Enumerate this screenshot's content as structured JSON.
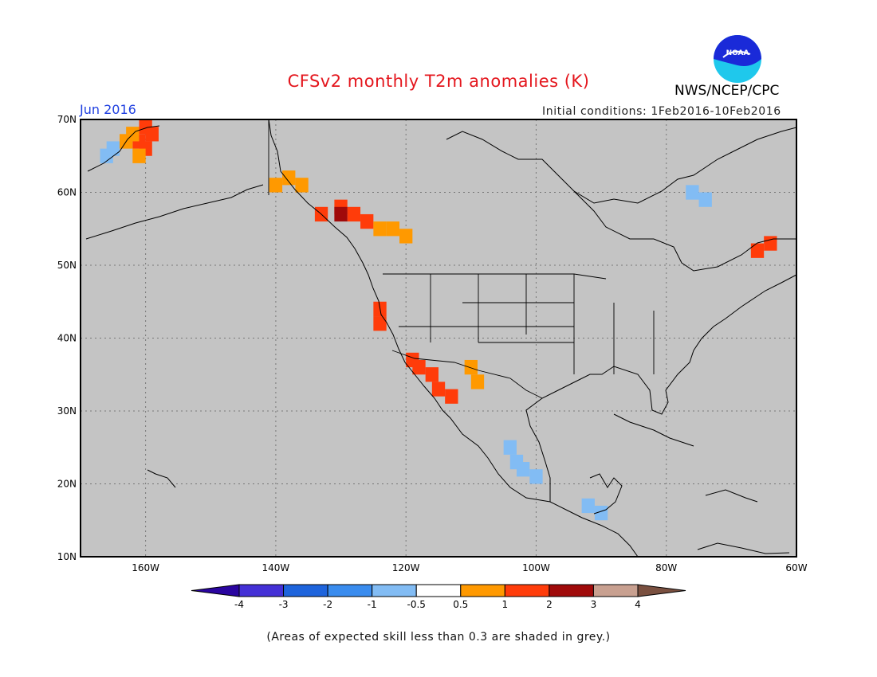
{
  "title": "CFSv2 monthly T2m anomalies (K)",
  "org": "NWS/NCEP/CPC",
  "logo_text": "NOAA",
  "valid_month": "Jun 2016",
  "initial_conditions": "Initial conditions: 1Feb2016-10Feb2016",
  "footnote": "(Areas of expected skill less than 0.3 are shaded in grey.)",
  "map": {
    "lon_range": [
      -170,
      -60
    ],
    "lat_range": [
      10,
      70
    ],
    "lon_ticks": [
      "160W",
      "140W",
      "120W",
      "100W",
      "80W",
      "60W"
    ],
    "lat_ticks": [
      "70N",
      "60N",
      "50N",
      "40N",
      "30N",
      "20N",
      "10N"
    ],
    "background_color": "#c4c4c4",
    "grid": "dotted"
  },
  "colorbar": {
    "ticks": [
      "-4",
      "-3",
      "-2",
      "-1",
      "-0.5",
      "0.5",
      "1",
      "2",
      "3",
      "4"
    ],
    "colors": [
      "#2a05a0",
      "#4430d6",
      "#1e64dc",
      "#3a8cee",
      "#82bcf4",
      "#ffffff",
      "#ff9900",
      "#ff3c0a",
      "#a00a0a",
      "#c8a090",
      "#7a5040"
    ]
  },
  "anomaly_regions": [
    {
      "name": "alaska-northwest",
      "color": "#ff3c0a",
      "cells": [
        [
          -160,
          69
        ],
        [
          -159,
          68
        ],
        [
          -161,
          67
        ],
        [
          -160,
          66
        ]
      ]
    },
    {
      "name": "alaska-northwest-warm",
      "color": "#ff9900",
      "cells": [
        [
          -162,
          68
        ],
        [
          -163,
          67
        ],
        [
          -161,
          65
        ]
      ]
    },
    {
      "name": "bering-coast-cold",
      "color": "#82bcf4",
      "cells": [
        [
          -166,
          65
        ],
        [
          -165,
          66
        ]
      ]
    },
    {
      "name": "yukon-warm",
      "color": "#ff9900",
      "cells": [
        [
          -138,
          62
        ],
        [
          -136,
          61
        ],
        [
          -140,
          61
        ]
      ]
    },
    {
      "name": "british-columbia-hot",
      "color": "#ff3c0a",
      "cells": [
        [
          -133,
          57
        ],
        [
          -130,
          58
        ],
        [
          -128,
          57
        ],
        [
          -126,
          56
        ]
      ]
    },
    {
      "name": "british-columbia-veryhot",
      "color": "#a00a0a",
      "cells": [
        [
          -130,
          57
        ]
      ]
    },
    {
      "name": "alberta-warm",
      "color": "#ff9900",
      "cells": [
        [
          -124,
          55
        ],
        [
          -122,
          55
        ],
        [
          -120,
          54
        ]
      ]
    },
    {
      "name": "pacific-nw-coast",
      "color": "#ff3c0a",
      "cells": [
        [
          -124,
          44
        ],
        [
          -124,
          42
        ]
      ]
    },
    {
      "name": "southwest-hot",
      "color": "#ff3c0a",
      "cells": [
        [
          -119,
          37
        ],
        [
          -118,
          36
        ],
        [
          -116,
          35
        ],
        [
          -115,
          33
        ],
        [
          -113,
          32
        ]
      ]
    },
    {
      "name": "four-corners-warm",
      "color": "#ff9900",
      "cells": [
        [
          -110,
          36
        ],
        [
          -109,
          34
        ]
      ]
    },
    {
      "name": "mexico-cool",
      "color": "#82bcf4",
      "cells": [
        [
          -104,
          25
        ],
        [
          -103,
          23
        ],
        [
          -102,
          22
        ],
        [
          -100,
          21
        ]
      ]
    },
    {
      "name": "central-america-cool",
      "color": "#82bcf4",
      "cells": [
        [
          -92,
          17
        ],
        [
          -90,
          16
        ]
      ]
    },
    {
      "name": "hudson-bay-cool",
      "color": "#82bcf4",
      "cells": [
        [
          -76,
          60
        ],
        [
          -74,
          59
        ]
      ]
    },
    {
      "name": "labrador-hot",
      "color": "#ff3c0a",
      "cells": [
        [
          -66,
          52
        ],
        [
          -64,
          53
        ]
      ]
    }
  ]
}
